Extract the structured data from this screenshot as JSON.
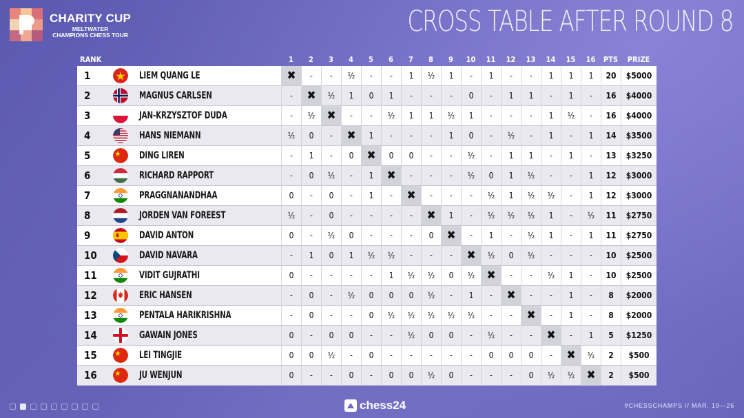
{
  "header": {
    "brand_title": "CHARITY CUP",
    "brand_sub1": "MELTWATER",
    "brand_sub2": "CHAMPIONS CHESS TOUR",
    "headline": "CROSS TABLE AFTER ROUND 8"
  },
  "table": {
    "columns": {
      "rank": "RANK",
      "rounds": [
        "1",
        "2",
        "3",
        "4",
        "5",
        "6",
        "7",
        "8",
        "9",
        "10",
        "11",
        "12",
        "13",
        "14",
        "15",
        "16"
      ],
      "pts": "PTS",
      "prize": "PRIZE"
    },
    "rows": [
      {
        "rank": "1",
        "flag": "vietnam",
        "name": "LIEM QUANG LE",
        "cells": [
          "✖",
          "-",
          "-",
          "½",
          "-",
          "-",
          "1",
          "½",
          "1",
          "-",
          "1",
          "-",
          "-",
          "1",
          "1",
          "1"
        ],
        "pts": "20",
        "prize": "$5000"
      },
      {
        "rank": "2",
        "flag": "norway",
        "name": "MAGNUS CARLSEN",
        "cells": [
          "-",
          "✖",
          "½",
          "1",
          "0",
          "1",
          "-",
          "-",
          "-",
          "0",
          "-",
          "1",
          "1",
          "-",
          "1",
          "-"
        ],
        "pts": "16",
        "prize": "$4000"
      },
      {
        "rank": "3",
        "flag": "poland",
        "name": "JAN-KRZYSZTOF DUDA",
        "cells": [
          "-",
          "½",
          "✖",
          "-",
          "-",
          "½",
          "1",
          "1",
          "½",
          "1",
          "-",
          "-",
          "-",
          "1",
          "½",
          "-"
        ],
        "pts": "16",
        "prize": "$4000"
      },
      {
        "rank": "4",
        "flag": "usa",
        "name": "HANS NIEMANN",
        "cells": [
          "½",
          "0",
          "-",
          "✖",
          "1",
          "-",
          "-",
          "-",
          "1",
          "0",
          "-",
          "½",
          "-",
          "1",
          "-",
          "1"
        ],
        "pts": "14",
        "prize": "$3500"
      },
      {
        "rank": "5",
        "flag": "china",
        "name": "DING LIREN",
        "cells": [
          "-",
          "1",
          "-",
          "0",
          "✖",
          "0",
          "0",
          "-",
          "-",
          "½",
          "-",
          "1",
          "1",
          "-",
          "1",
          "-"
        ],
        "pts": "13",
        "prize": "$3250"
      },
      {
        "rank": "6",
        "flag": "hungary",
        "name": "RICHARD RAPPORT",
        "cells": [
          "-",
          "0",
          "½",
          "-",
          "1",
          "✖",
          "-",
          "-",
          "-",
          "½",
          "0",
          "1",
          "½",
          "-",
          "-",
          "1"
        ],
        "pts": "12",
        "prize": "$3000"
      },
      {
        "rank": "7",
        "flag": "india",
        "name": "PRAGGNANANDHAA",
        "cells": [
          "0",
          "-",
          "0",
          "-",
          "1",
          "-",
          "✖",
          "-",
          "-",
          "-",
          "½",
          "1",
          "½",
          "½",
          "-",
          "1"
        ],
        "pts": "12",
        "prize": "$3000"
      },
      {
        "rank": "8",
        "flag": "netherlands",
        "name": "JORDEN VAN FOREEST",
        "cells": [
          "½",
          "-",
          "0",
          "-",
          "-",
          "-",
          "-",
          "✖",
          "1",
          "-",
          "½",
          "½",
          "½",
          "1",
          "-",
          "½"
        ],
        "pts": "11",
        "prize": "$2750"
      },
      {
        "rank": "9",
        "flag": "spain",
        "name": "DAVID ANTON",
        "cells": [
          "0",
          "-",
          "½",
          "0",
          "-",
          "-",
          "-",
          "0",
          "✖",
          "-",
          "1",
          "-",
          "½",
          "1",
          "-",
          "1"
        ],
        "pts": "11",
        "prize": "$2750"
      },
      {
        "rank": "10",
        "flag": "czech",
        "name": "DAVID NAVARA",
        "cells": [
          "-",
          "1",
          "0",
          "1",
          "½",
          "½",
          "-",
          "-",
          "-",
          "✖",
          "½",
          "0",
          "½",
          "-",
          "-",
          "-"
        ],
        "pts": "10",
        "prize": "$2500"
      },
      {
        "rank": "11",
        "flag": "india",
        "name": "VIDIT GUJRATHI",
        "cells": [
          "0",
          "-",
          "-",
          "-",
          "-",
          "1",
          "½",
          "½",
          "0",
          "½",
          "✖",
          "-",
          "-",
          "½",
          "1",
          "-"
        ],
        "pts": "10",
        "prize": "$2500"
      },
      {
        "rank": "12",
        "flag": "canada",
        "name": "ERIC HANSEN",
        "cells": [
          "-",
          "0",
          "-",
          "½",
          "0",
          "0",
          "0",
          "½",
          "-",
          "1",
          "-",
          "✖",
          "-",
          "-",
          "1",
          "-"
        ],
        "pts": "8",
        "prize": "$2000"
      },
      {
        "rank": "13",
        "flag": "india",
        "name": "PENTALA HARIKRISHNA",
        "cells": [
          "-",
          "0",
          "-",
          "-",
          "0",
          "½",
          "½",
          "½",
          "½",
          "½",
          "-",
          "-",
          "✖",
          "-",
          "1",
          "-"
        ],
        "pts": "8",
        "prize": "$2000"
      },
      {
        "rank": "14",
        "flag": "england",
        "name": "GAWAIN JONES",
        "cells": [
          "0",
          "-",
          "0",
          "0",
          "-",
          "-",
          "½",
          "0",
          "0",
          "-",
          "½",
          "-",
          "-",
          "✖",
          "-",
          "1"
        ],
        "pts": "5",
        "prize": "$1250"
      },
      {
        "rank": "15",
        "flag": "china",
        "name": "LEI TINGJIE",
        "cells": [
          "0",
          "0",
          "½",
          "-",
          "0",
          "-",
          "-",
          "-",
          "-",
          "-",
          "0",
          "0",
          "0",
          "-",
          "✖",
          "½"
        ],
        "pts": "2",
        "prize": "$500"
      },
      {
        "rank": "16",
        "flag": "china",
        "name": "JU WENJUN",
        "cells": [
          "0",
          "-",
          "-",
          "0",
          "-",
          "0",
          "0",
          "½",
          "0",
          "-",
          "-",
          "-",
          "0",
          "½",
          "½",
          "✖"
        ],
        "pts": "2",
        "prize": "$500"
      }
    ]
  },
  "footer": {
    "brand": "chess24",
    "hashtag": "#CHESSCHAMPS  //  MAR. 19—26"
  },
  "colors": {
    "background": "#6b68c0",
    "row_odd": "#ffffff",
    "row_even": "#e9e9ef",
    "self_cell": "#d2d2da"
  }
}
